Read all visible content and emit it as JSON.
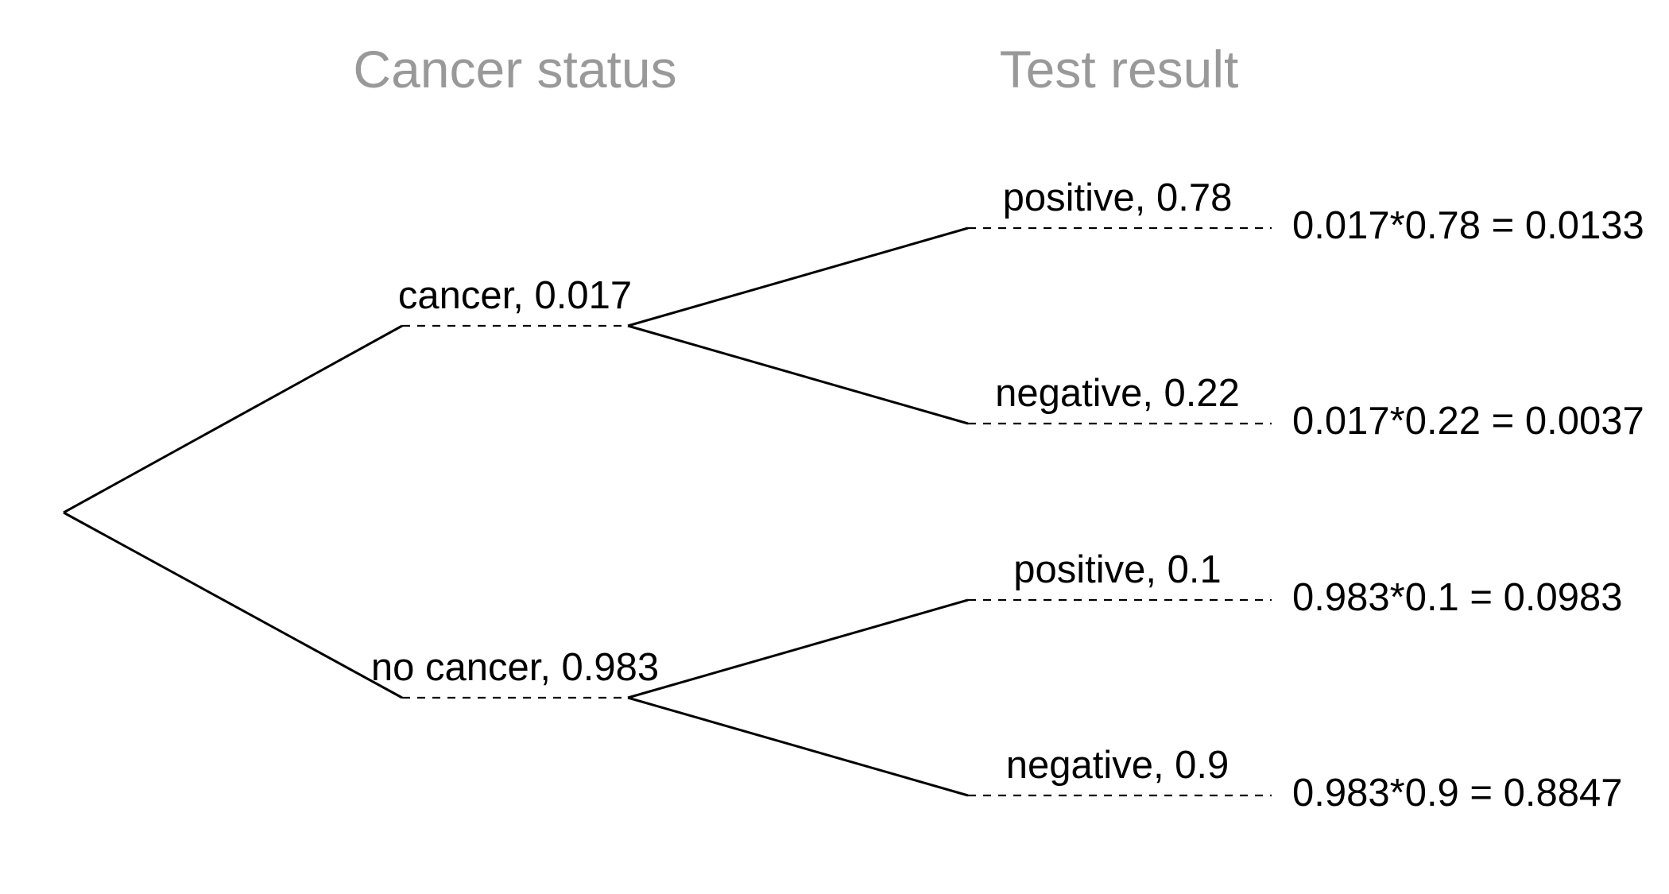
{
  "colors": {
    "header": "#999999",
    "lines": "#000000",
    "text": "#000000",
    "background": "#ffffff"
  },
  "headers": {
    "first_level": "Cancer status",
    "second_level": "Test result"
  },
  "level1": [
    {
      "label": "cancer,  0.017"
    },
    {
      "label": "no cancer,  0.983"
    }
  ],
  "level2": [
    {
      "label": "positive,  0.78",
      "joint": "0.017*0.78 = 0.0133"
    },
    {
      "label": "negative,  0.22",
      "joint": "0.017*0.22 = 0.0037"
    },
    {
      "label": "positive,  0.1",
      "joint": "0.983*0.1 = 0.0983"
    },
    {
      "label": "negative,  0.9",
      "joint": "0.983*0.9 = 0.8847"
    }
  ]
}
